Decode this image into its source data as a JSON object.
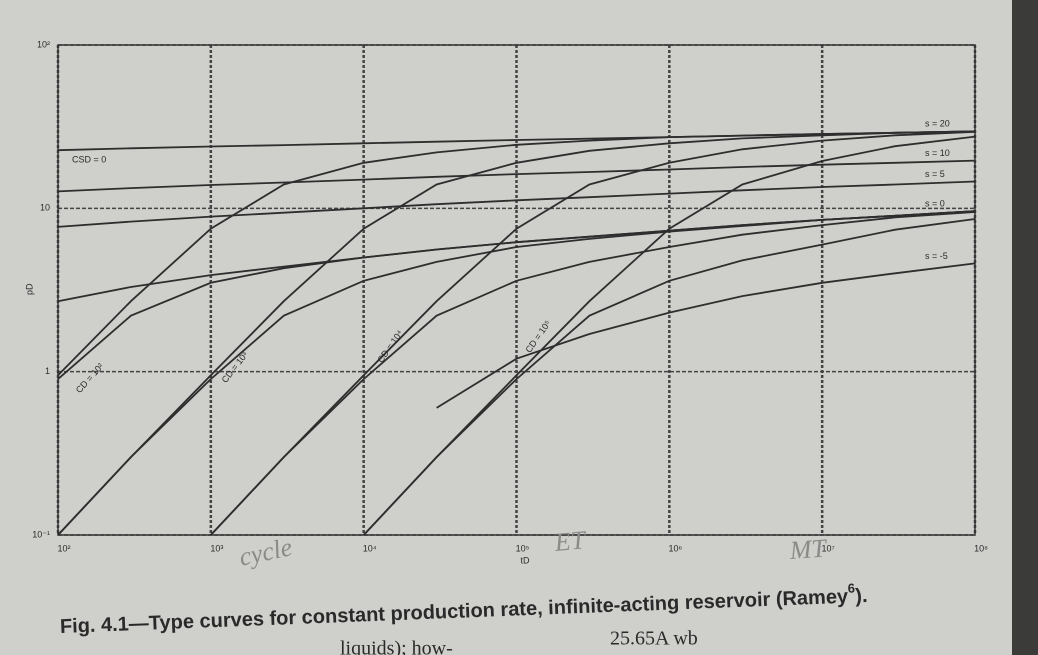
{
  "chart_data": {
    "type": "line",
    "caption_main": "Fig. 4.1—Type curves for constant production rate, infinite-acting reservoir (Ramey",
    "caption_ref": "6",
    "caption_end": ").",
    "xlabel": "tD",
    "ylabel": "pD",
    "xlog": true,
    "ylog": true,
    "grid": true,
    "x": [
      100,
      300,
      1000,
      3000,
      10000,
      30000,
      100000,
      300000,
      1000000,
      3000000,
      10000000,
      30000000,
      100000000
    ],
    "xlim": [
      100,
      100000000
    ],
    "ylim": [
      0.1,
      100
    ],
    "xticks": [
      {
        "value": 100,
        "label": "10²"
      },
      {
        "value": 1000,
        "label": "10³"
      },
      {
        "value": 10000,
        "label": "10⁴"
      },
      {
        "value": 100000,
        "label": "10⁵"
      },
      {
        "value": 1000000,
        "label": "10⁶"
      },
      {
        "value": 10000000,
        "label": "10⁷"
      },
      {
        "value": 100000000,
        "label": "10⁸"
      }
    ],
    "yticks": [
      {
        "value": 0.1,
        "label": "10⁻¹"
      },
      1,
      10,
      {
        "value": 100,
        "label": "10²"
      }
    ],
    "series": [
      {
        "name": "s = 20",
        "color": "#2e2e2e",
        "values": [
          22.7,
          23.3,
          23.9,
          24.4,
          25,
          25.6,
          26.2,
          26.7,
          27.3,
          27.9,
          28.5,
          29,
          29.6
        ]
      },
      {
        "name": "s = 10",
        "color": "#2e2e2e",
        "values": [
          12.7,
          13.3,
          13.9,
          14.4,
          15,
          15.6,
          16.2,
          16.7,
          17.3,
          17.9,
          18.5,
          19,
          19.6
        ]
      },
      {
        "name": "s = 5",
        "color": "#2e2e2e",
        "values": [
          7.7,
          8.3,
          8.9,
          9.4,
          10,
          10.6,
          11.2,
          11.7,
          12.3,
          12.9,
          13.5,
          14,
          14.6
        ]
      },
      {
        "name": "s = 0",
        "color": "#2e2e2e",
        "values": [
          2.7,
          3.3,
          3.9,
          4.4,
          5,
          5.6,
          6.2,
          6.7,
          7.3,
          7.9,
          8.5,
          9,
          9.6
        ]
      },
      {
        "name": "s = -5",
        "color": "#2e2e2e",
        "values": [
          null,
          null,
          null,
          null,
          null,
          0.6,
          1.2,
          1.7,
          2.3,
          2.9,
          3.5,
          4,
          4.6
        ]
      },
      {
        "color": "#2e2e2e",
        "values": [
          0.95,
          2.7,
          7.5,
          14,
          19,
          22,
          24.5,
          26,
          27.3,
          27.9,
          28.5,
          29,
          29.6
        ]
      },
      {
        "color": "#2e2e2e",
        "values": [
          0.9,
          2.2,
          3.5,
          4.3,
          5,
          5.6,
          6.2,
          6.7,
          7.3,
          7.9,
          8.5,
          9,
          9.6
        ]
      },
      {
        "color": "#2e2e2e",
        "values": [
          0.1,
          0.3,
          0.95,
          2.7,
          7.5,
          14,
          19,
          22.5,
          25,
          26.8,
          28,
          29,
          29.6
        ]
      },
      {
        "color": "#2e2e2e",
        "values": [
          0.1,
          0.3,
          0.9,
          2.2,
          3.6,
          4.7,
          5.8,
          6.5,
          7.2,
          7.8,
          8.5,
          9,
          9.6
        ]
      },
      {
        "color": "#2e2e2e",
        "values": [
          null,
          null,
          0.1,
          0.3,
          0.95,
          2.7,
          7.5,
          14,
          19,
          23,
          26,
          28,
          29.4
        ]
      },
      {
        "color": "#2e2e2e",
        "values": [
          null,
          null,
          0.1,
          0.3,
          0.9,
          2.2,
          3.6,
          4.7,
          5.8,
          6.9,
          7.9,
          8.8,
          9.5
        ]
      },
      {
        "color": "#2e2e2e",
        "values": [
          null,
          null,
          null,
          null,
          0.1,
          0.3,
          0.95,
          2.7,
          7.5,
          14,
          19.5,
          24,
          27.5
        ]
      },
      {
        "color": "#2e2e2e",
        "values": [
          null,
          null,
          null,
          null,
          0.1,
          0.3,
          0.9,
          2.2,
          3.6,
          4.8,
          6,
          7.4,
          8.6
        ]
      }
    ],
    "annotations": [
      "CSD = 0",
      "CD = 10²",
      "CD = 10³",
      "CD = 10⁴",
      "CD = 10⁵"
    ],
    "handwritten": [
      "cycle",
      "ET",
      "MT"
    ]
  },
  "page_text": [
    "liquids); how-",
    "25.65A wb"
  ]
}
